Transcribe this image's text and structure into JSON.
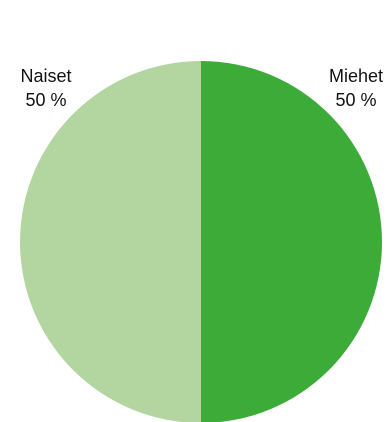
{
  "chart_data": {
    "type": "pie",
    "slices": [
      {
        "label": "Miehet",
        "value": 50,
        "value_label": "50 %",
        "color": "#3dab37"
      },
      {
        "label": "Naiset",
        "value": 50,
        "value_label": "50 %",
        "color": "#b3d6a1"
      }
    ],
    "start_angle": "12 o'clock",
    "direction": "clockwise"
  }
}
